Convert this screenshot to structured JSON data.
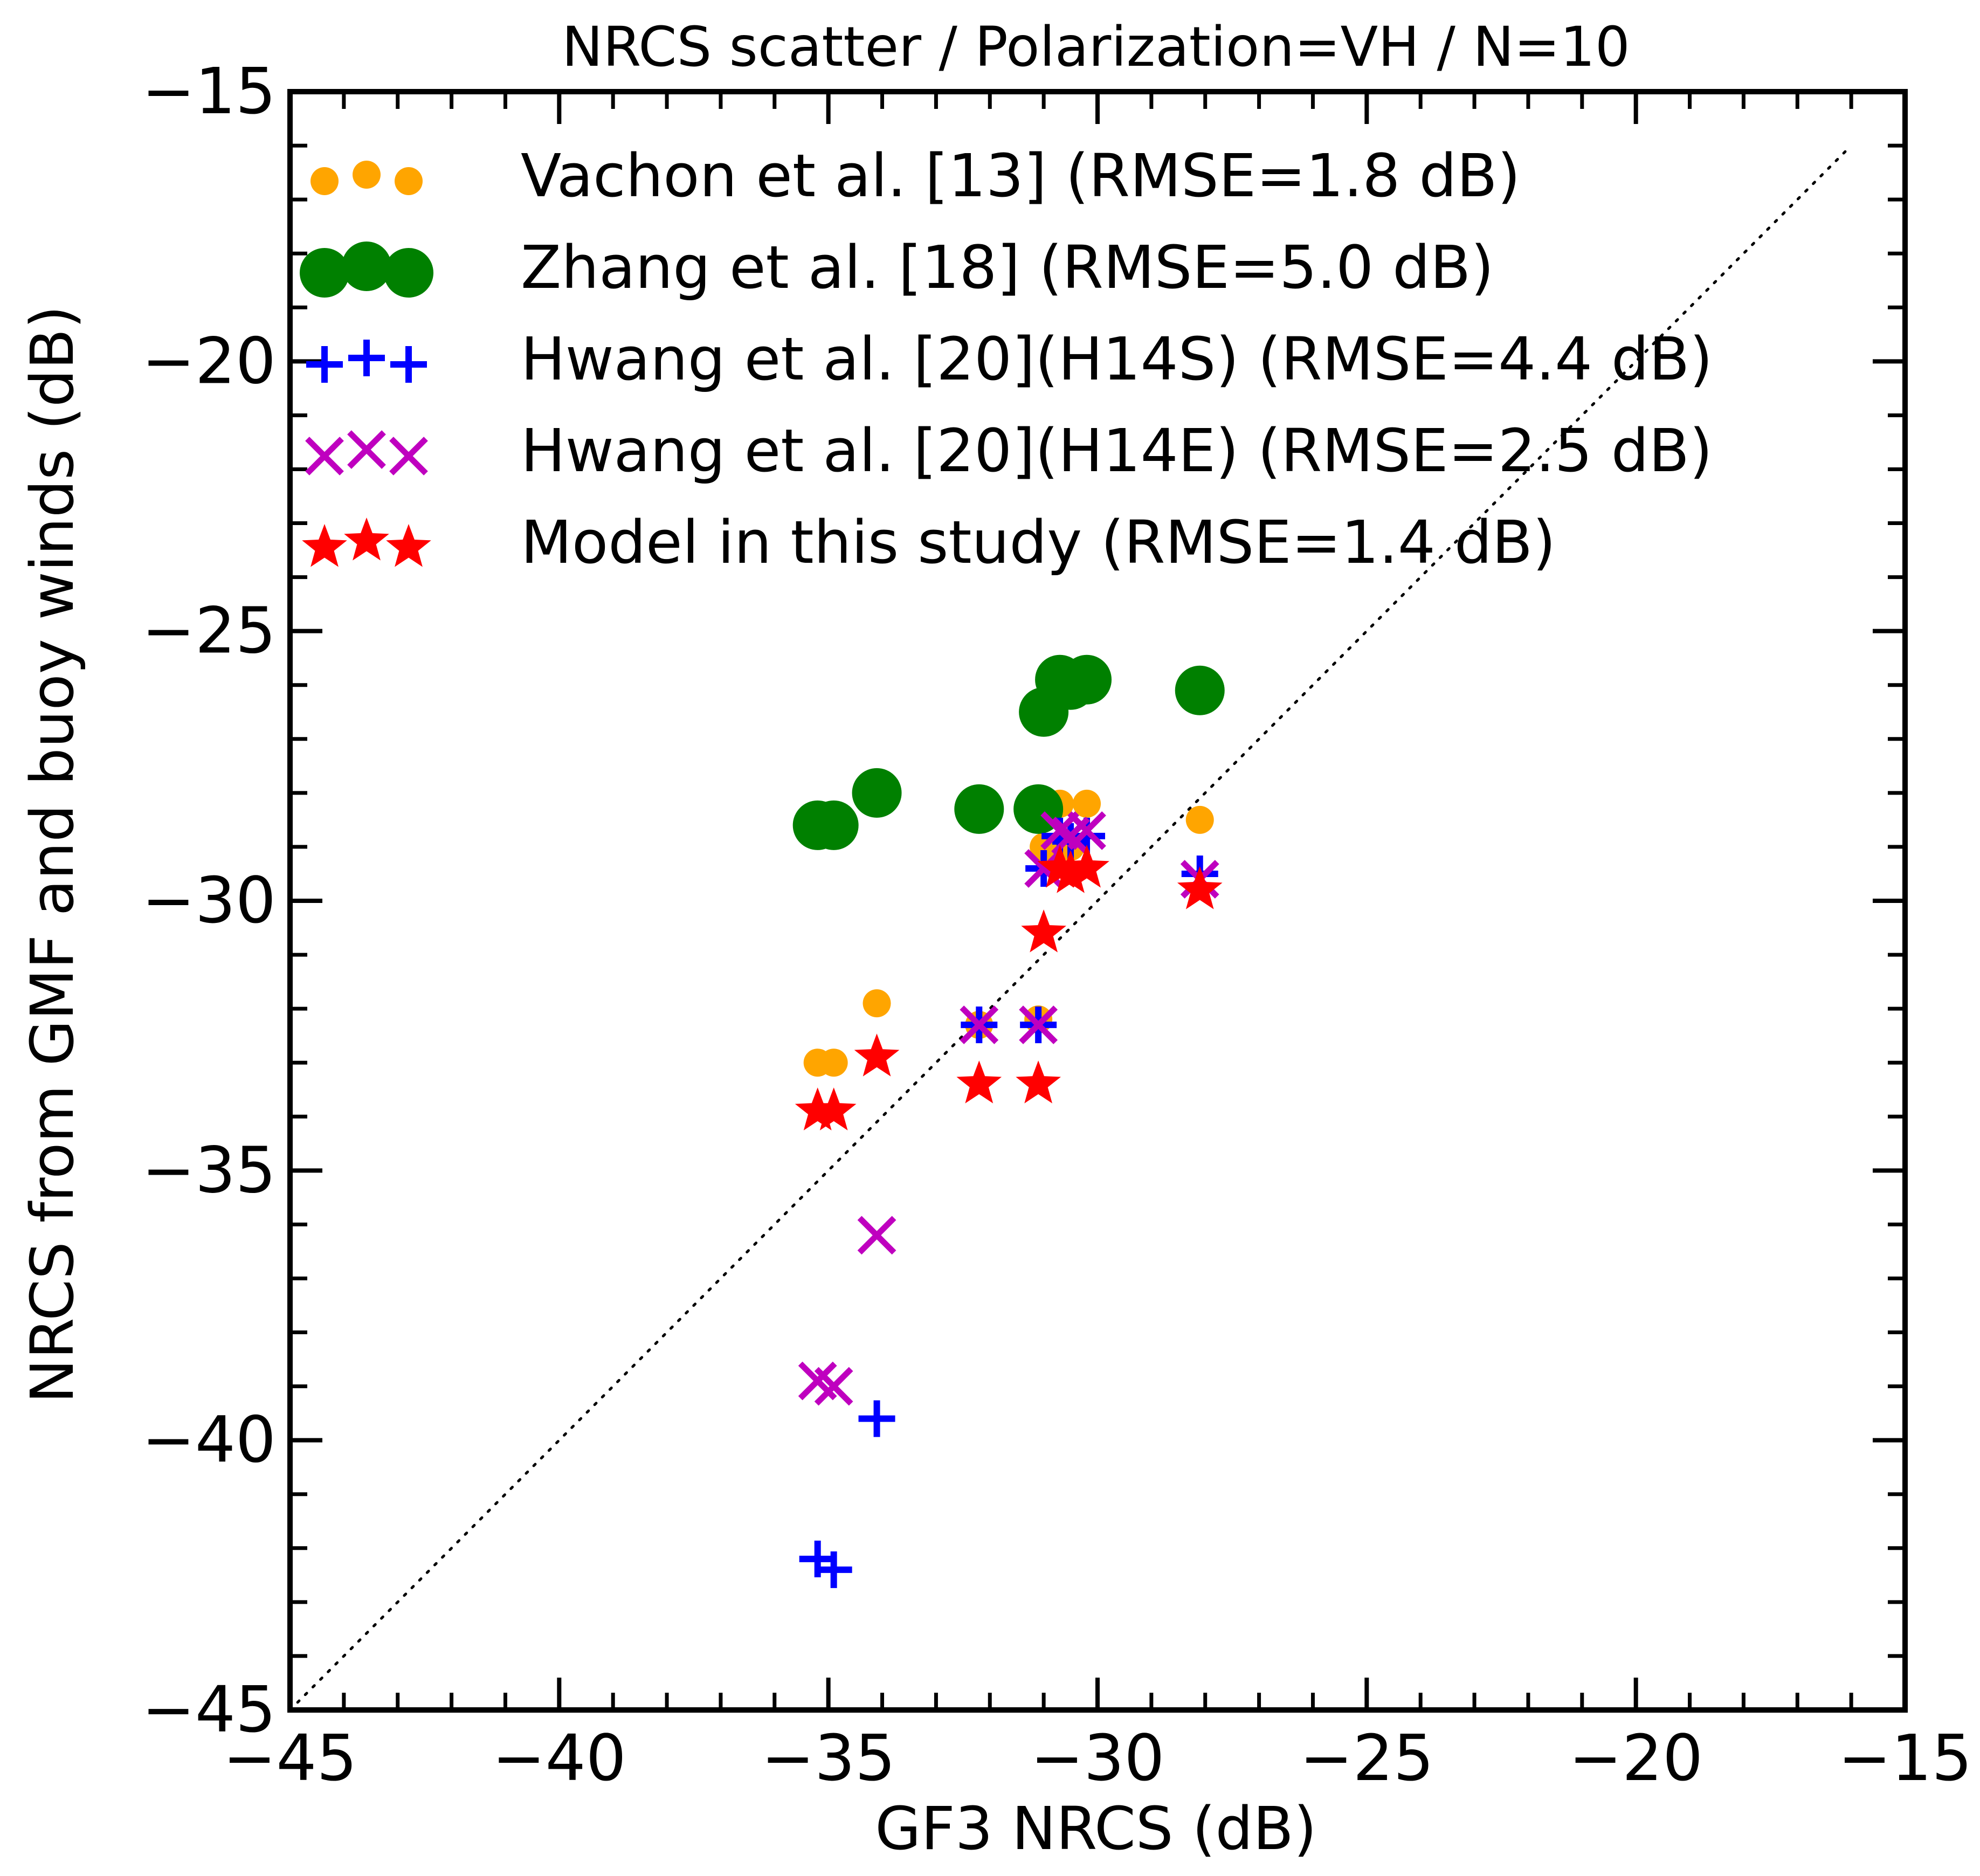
{
  "chart_data": {
    "type": "scatter",
    "title": "NRCS scatter / Polarization=VH / N=10",
    "xlabel": "GF3 NRCS (dB)",
    "ylabel": "NRCS from GMF and buoy winds (dB)",
    "xlim": [
      -45,
      -15
    ],
    "ylim": [
      -45,
      -15
    ],
    "x_ticks": [
      -45,
      -40,
      -35,
      -30,
      -25,
      -20,
      -15
    ],
    "y_ticks": [
      -45,
      -40,
      -35,
      -30,
      -25,
      -20,
      -15
    ],
    "x_tick_labels": [
      "−45",
      "−40",
      "−35",
      "−30",
      "−25",
      "−20",
      "−15"
    ],
    "y_tick_labels": [
      "−45",
      "−40",
      "−35",
      "−30",
      "−25",
      "−20",
      "−15"
    ],
    "reference_line": "1:1 dotted",
    "legend_position": "top-left",
    "x": [
      -35.2,
      -34.9,
      -34.1,
      -32.2,
      -31.1,
      -31.0,
      -30.7,
      -30.2,
      -28.1,
      -30.5
    ],
    "series": [
      {
        "name": "Vachon et al. [13] (RMSE=1.8 dB)",
        "marker": "dot",
        "color": "#ffa500",
        "y": [
          -33.0,
          -33.0,
          -31.9,
          -32.3,
          -32.2,
          -29.0,
          -28.2,
          -28.2,
          -28.5,
          -29.0
        ]
      },
      {
        "name": "Zhang et al. [18] (RMSE=5.0 dB)",
        "marker": "circle",
        "color": "#008000",
        "y": [
          -28.6,
          -28.6,
          -28.0,
          -28.3,
          -28.3,
          -26.5,
          -25.9,
          -25.9,
          -26.1,
          -26.0
        ]
      },
      {
        "name": "Hwang et al. [20](H14S) (RMSE=4.4 dB)",
        "marker": "plus",
        "color": "#0000ff",
        "y": [
          -42.2,
          -42.4,
          -39.6,
          -32.3,
          -32.3,
          -29.4,
          -28.8,
          -28.8,
          -29.5,
          -28.9
        ]
      },
      {
        "name": "Hwang et al. [20](H14E) (RMSE=2.5 dB)",
        "marker": "x",
        "color": "#bf00bf",
        "y": [
          -38.9,
          -39.0,
          -36.2,
          -32.3,
          -32.3,
          -29.4,
          -28.7,
          -28.7,
          -29.6,
          -28.8
        ]
      },
      {
        "name": "Model in this study (RMSE=1.4 dB)",
        "marker": "star",
        "color": "#ff0000",
        "y": [
          -33.9,
          -33.9,
          -32.9,
          -33.4,
          -33.4,
          -30.6,
          -29.4,
          -29.4,
          -29.8,
          -29.5
        ]
      }
    ]
  }
}
